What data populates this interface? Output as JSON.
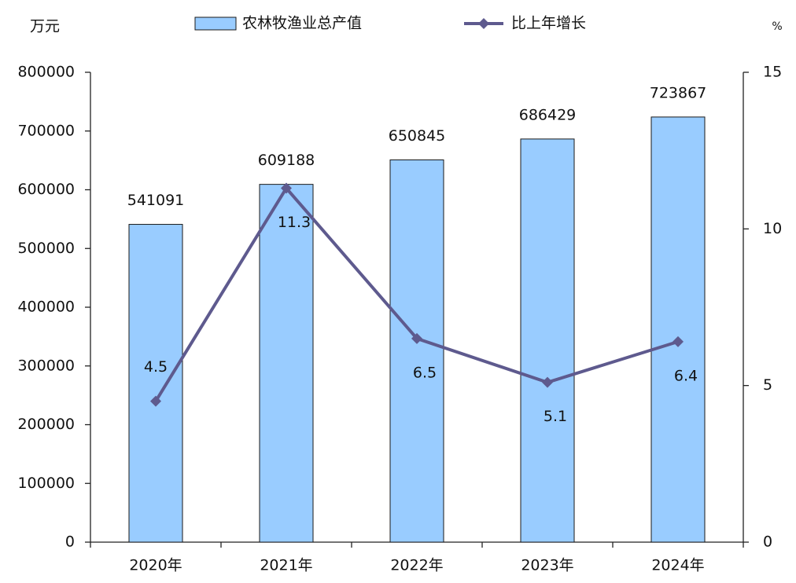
{
  "chart_data": {
    "type": "bar-line",
    "y_label": "万元",
    "y2_label": "%",
    "categories": [
      "2020年",
      "2021年",
      "2022年",
      "2023年",
      "2024年"
    ],
    "series": [
      {
        "name": "农林牧渔业总产值",
        "type": "bar",
        "color": "#99ccff",
        "values": [
          541091,
          609188,
          650845,
          686429,
          723867
        ]
      },
      {
        "name": "比上年增长",
        "type": "line",
        "axis": "y2",
        "color": "#5e5a8e",
        "values": [
          4.5,
          11.3,
          6.5,
          5.1,
          6.4
        ]
      }
    ],
    "ylim": [
      0,
      800000
    ],
    "yticks": [
      0,
      100000,
      200000,
      300000,
      400000,
      500000,
      600000,
      700000,
      800000
    ],
    "y2lim": [
      0,
      15
    ],
    "y2ticks": [
      0,
      5,
      10,
      15
    ],
    "grid": false,
    "legend": "top"
  }
}
